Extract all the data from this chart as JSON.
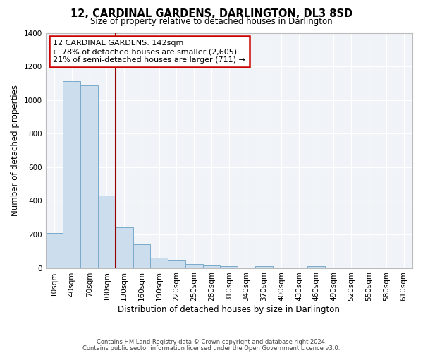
{
  "title": "12, CARDINAL GARDENS, DARLINGTON, DL3 8SD",
  "subtitle": "Size of property relative to detached houses in Darlington",
  "xlabel": "Distribution of detached houses by size in Darlington",
  "ylabel": "Number of detached properties",
  "footnote1": "Contains HM Land Registry data © Crown copyright and database right 2024.",
  "footnote2": "Contains public sector information licensed under the Open Government Licence v3.0.",
  "bin_labels": [
    "10sqm",
    "40sqm",
    "70sqm",
    "100sqm",
    "130sqm",
    "160sqm",
    "190sqm",
    "220sqm",
    "250sqm",
    "280sqm",
    "310sqm",
    "340sqm",
    "370sqm",
    "400sqm",
    "430sqm",
    "460sqm",
    "490sqm",
    "520sqm",
    "550sqm",
    "580sqm",
    "610sqm"
  ],
  "bar_values": [
    210,
    1110,
    1085,
    430,
    240,
    140,
    60,
    47,
    22,
    14,
    10,
    0,
    10,
    0,
    0,
    10,
    0,
    0,
    0,
    0,
    0
  ],
  "bar_color": "#ccdded",
  "bar_edge_color": "#7aaaca",
  "grid_color": "#dde8f0",
  "vline_x": 4.0,
  "vline_color": "#990000",
  "annotation_text": "12 CARDINAL GARDENS: 142sqm\n← 78% of detached houses are smaller (2,605)\n21% of semi-detached houses are larger (711) →",
  "annotation_box_color": "#ffffff",
  "annotation_box_edge": "#cc0000",
  "ylim": [
    0,
    1400
  ],
  "yticks": [
    0,
    200,
    400,
    600,
    800,
    1000,
    1200,
    1400
  ],
  "bg_color": "#f0f4f8"
}
